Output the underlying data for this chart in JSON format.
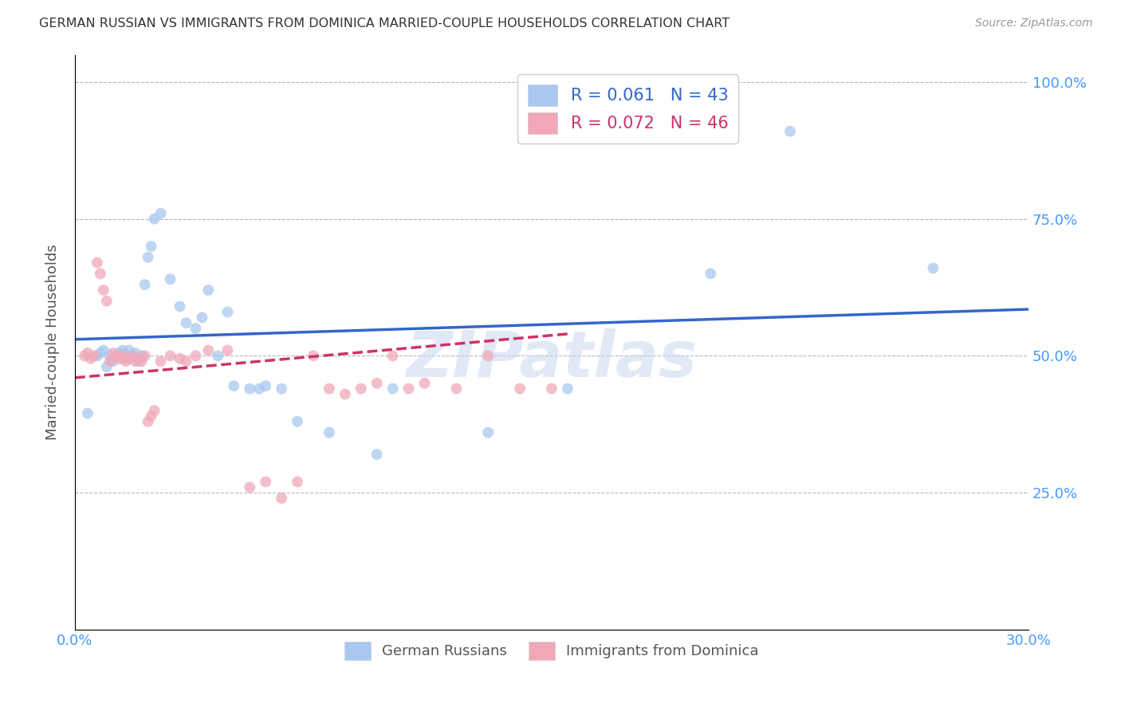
{
  "title": "GERMAN RUSSIAN VS IMMIGRANTS FROM DOMINICA MARRIED-COUPLE HOUSEHOLDS CORRELATION CHART",
  "source": "Source: ZipAtlas.com",
  "ylabel": "Married-couple Households",
  "xlim": [
    0.0,
    0.3
  ],
  "ylim": [
    0.0,
    1.05
  ],
  "yticks": [
    0.0,
    0.25,
    0.5,
    0.75,
    1.0
  ],
  "ytick_labels": [
    "",
    "25.0%",
    "50.0%",
    "75.0%",
    "100.0%"
  ],
  "xticks": [
    0.0,
    0.05,
    0.1,
    0.15,
    0.2,
    0.25,
    0.3
  ],
  "xtick_labels": [
    "0.0%",
    "",
    "",
    "",
    "",
    "",
    "30.0%"
  ],
  "legend_entries": [
    {
      "label": "R = 0.061   N = 43",
      "color": "#a8c8f0"
    },
    {
      "label": "R = 0.072   N = 46",
      "color": "#f0a8b8"
    }
  ],
  "watermark": "ZIPatlas",
  "axis_color": "#4499ff",
  "grid_color": "#b0b8c8",
  "blue_scatter_x": [
    0.004,
    0.007,
    0.008,
    0.009,
    0.01,
    0.011,
    0.012,
    0.013,
    0.014,
    0.015,
    0.016,
    0.017,
    0.018,
    0.019,
    0.02,
    0.021,
    0.022,
    0.023,
    0.024,
    0.025,
    0.027,
    0.03,
    0.033,
    0.035,
    0.038,
    0.04,
    0.042,
    0.045,
    0.048,
    0.05,
    0.055,
    0.058,
    0.06,
    0.065,
    0.07,
    0.08,
    0.095,
    0.1,
    0.13,
    0.155,
    0.2,
    0.225,
    0.27
  ],
  "blue_scatter_y": [
    0.395,
    0.5,
    0.505,
    0.51,
    0.48,
    0.5,
    0.49,
    0.5,
    0.505,
    0.51,
    0.495,
    0.51,
    0.5,
    0.505,
    0.49,
    0.5,
    0.63,
    0.68,
    0.7,
    0.75,
    0.76,
    0.64,
    0.59,
    0.56,
    0.55,
    0.57,
    0.62,
    0.5,
    0.58,
    0.445,
    0.44,
    0.44,
    0.445,
    0.44,
    0.38,
    0.36,
    0.32,
    0.44,
    0.36,
    0.44,
    0.65,
    0.91,
    0.66
  ],
  "pink_scatter_x": [
    0.003,
    0.004,
    0.005,
    0.006,
    0.007,
    0.008,
    0.009,
    0.01,
    0.011,
    0.012,
    0.013,
    0.014,
    0.015,
    0.016,
    0.017,
    0.018,
    0.019,
    0.02,
    0.021,
    0.022,
    0.023,
    0.024,
    0.025,
    0.027,
    0.03,
    0.033,
    0.035,
    0.038,
    0.042,
    0.048,
    0.055,
    0.06,
    0.065,
    0.07,
    0.075,
    0.08,
    0.085,
    0.09,
    0.095,
    0.1,
    0.105,
    0.11,
    0.12,
    0.13,
    0.14,
    0.15
  ],
  "pink_scatter_y": [
    0.5,
    0.505,
    0.495,
    0.5,
    0.67,
    0.65,
    0.62,
    0.6,
    0.49,
    0.505,
    0.5,
    0.495,
    0.5,
    0.49,
    0.495,
    0.5,
    0.49,
    0.495,
    0.49,
    0.5,
    0.38,
    0.39,
    0.4,
    0.49,
    0.5,
    0.495,
    0.49,
    0.5,
    0.51,
    0.51,
    0.26,
    0.27,
    0.24,
    0.27,
    0.5,
    0.44,
    0.43,
    0.44,
    0.45,
    0.5,
    0.44,
    0.45,
    0.44,
    0.5,
    0.44,
    0.44
  ],
  "blue_line_x": [
    0.0,
    0.3
  ],
  "blue_line_y": [
    0.53,
    0.585
  ],
  "pink_line_x": [
    0.0,
    0.155
  ],
  "pink_line_y": [
    0.46,
    0.54
  ],
  "blue_dot_color": "#a8c8f0",
  "pink_dot_color": "#f0a8b8",
  "blue_line_color": "#3366cc",
  "pink_line_color": "#cc3366",
  "marker_size": 100,
  "marker_alpha": 0.75,
  "line_width": 2.5
}
